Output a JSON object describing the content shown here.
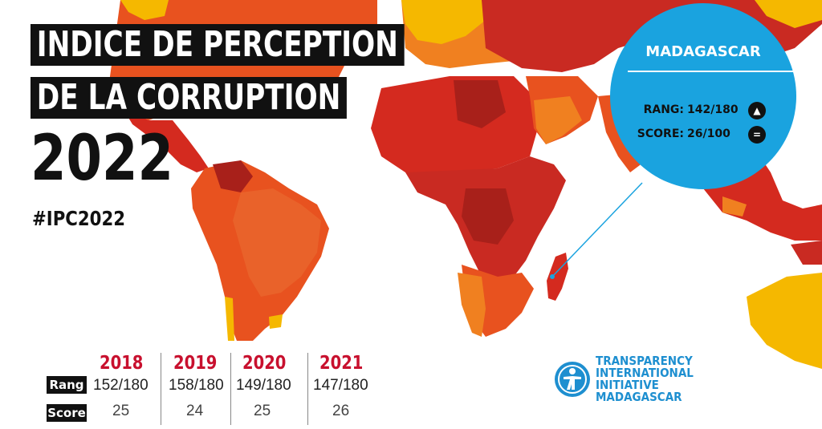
{
  "title": {
    "line1": "INDICE DE PERCEPTION",
    "line2": "DE LA CORRUPTION",
    "year": "2022",
    "hashtag": "#IPC2022"
  },
  "callout": {
    "country": "MADAGASCAR",
    "rang_label": "RANG:",
    "rang_value": "142/180",
    "rang_trend_icon": "triangle-up-icon",
    "score_label": "SCORE:",
    "score_value": "26/100",
    "score_trend_icon": "equals-icon"
  },
  "history": {
    "row_labels": {
      "rang": "Rang",
      "score": "Score"
    },
    "years": [
      {
        "year": "2018",
        "rang": "152/180",
        "score": "25"
      },
      {
        "year": "2019",
        "rang": "158/180",
        "score": "24"
      },
      {
        "year": "2020",
        "rang": "149/180",
        "score": "25"
      },
      {
        "year": "2021",
        "rang": "147/180",
        "score": "26"
      }
    ]
  },
  "logo": {
    "icon": "transparency-figure-icon",
    "lines": [
      "TRANSPARENCY",
      "INTERNATIONAL",
      "INITIATIVE",
      "MADAGASCAR"
    ]
  },
  "colors": {
    "background": "#ffffff",
    "callout_blue": "#1aa3df",
    "year_red": "#c8102e",
    "logo_blue": "#1e8fd0",
    "map_dark_red": "#a8201a",
    "map_red": "#d42a1f",
    "map_orange": "#e8521f",
    "map_light_orange": "#f08020",
    "map_yellow": "#f5b800"
  }
}
